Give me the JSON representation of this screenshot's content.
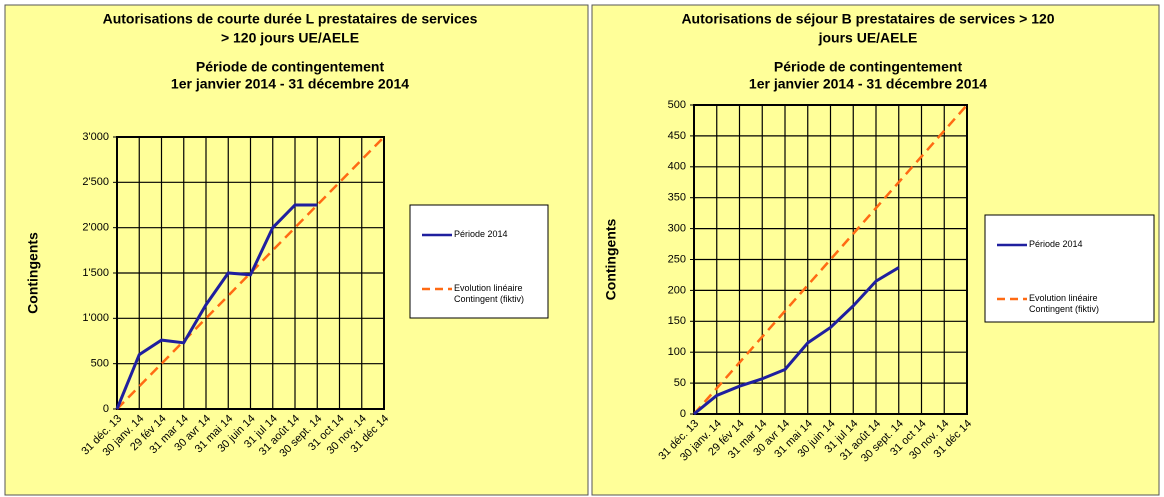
{
  "chart_data": [
    {
      "type": "line",
      "title": [
        "Autorisations de courte durée L prestataires de services",
        "> 120 jours UE/AELE"
      ],
      "subtitle": [
        "Période de contingentement",
        "1er janvier 2014 - 31 décembre 2014"
      ],
      "y_label": "Contingents",
      "categories": [
        "31 déc. 13",
        "30 janv. 14",
        "29 fév 14",
        "31 mar 14",
        "30 avr 14",
        "31 mai 14",
        "30 juin 14",
        "31 jul 14",
        "31 août 14",
        "30 sept. 14",
        "31 oct 14",
        "30 nov. 14",
        "31 déc 14"
      ],
      "ylim": [
        0,
        3000
      ],
      "yticks": [
        0,
        500,
        {
          "value": 1000,
          "label": "1'000"
        },
        {
          "value": 1500,
          "label": "1'500"
        },
        {
          "value": 2000,
          "label": "2'000"
        },
        {
          "value": 2500,
          "label": "2'500"
        },
        {
          "value": 3000,
          "label": "3'000"
        }
      ],
      "grid": true,
      "legend": "right",
      "series": [
        {
          "name": "Période 2014",
          "color": "#1f1f9f",
          "dash": false,
          "values": [
            0,
            600,
            760,
            730,
            1150,
            1500,
            1480,
            2000,
            2250,
            2250,
            null,
            null,
            null
          ]
        },
        {
          "name": "Evolution linéaire Contingent (fiktiv)",
          "color": "#ff6a13",
          "dash": true,
          "values": [
            0,
            250,
            500,
            750,
            1000,
            1250,
            1500,
            1750,
            2000,
            2250,
            2500,
            2750,
            3000
          ]
        }
      ]
    },
    {
      "type": "line",
      "title": [
        "Autorisations de séjour B prestataires de services > 120",
        "jours UE/AELE"
      ],
      "subtitle": [
        "Période de contingentement",
        "1er janvier 2014 - 31 décembre 2014"
      ],
      "y_label": "Contingents",
      "categories": [
        "31 déc. 13",
        "30 janv. 14",
        "29 fév 14",
        "31 mar 14",
        "30 avr 14",
        "31 mai 14",
        "30 juin 14",
        "31 jul 14",
        "31 août 14",
        "30 sept. 14",
        "31 oct 14",
        "30 nov. 14",
        "31 déc 14"
      ],
      "ylim": [
        0,
        500
      ],
      "yticks": [
        0,
        50,
        100,
        150,
        200,
        250,
        300,
        350,
        400,
        450,
        500
      ],
      "grid": true,
      "legend": "right",
      "series": [
        {
          "name": "Période 2014",
          "color": "#1f1f9f",
          "dash": false,
          "values": [
            0,
            30,
            45,
            57,
            72,
            115,
            140,
            175,
            215,
            237,
            null,
            null,
            null
          ]
        },
        {
          "name": "Evolution linéaire Contingent (fiktiv)",
          "color": "#ff6a13",
          "dash": true,
          "values": [
            0,
            41.67,
            83.33,
            125,
            166.67,
            208.33,
            250,
            291.67,
            333.33,
            375,
            416.67,
            458.33,
            500
          ]
        }
      ]
    }
  ]
}
